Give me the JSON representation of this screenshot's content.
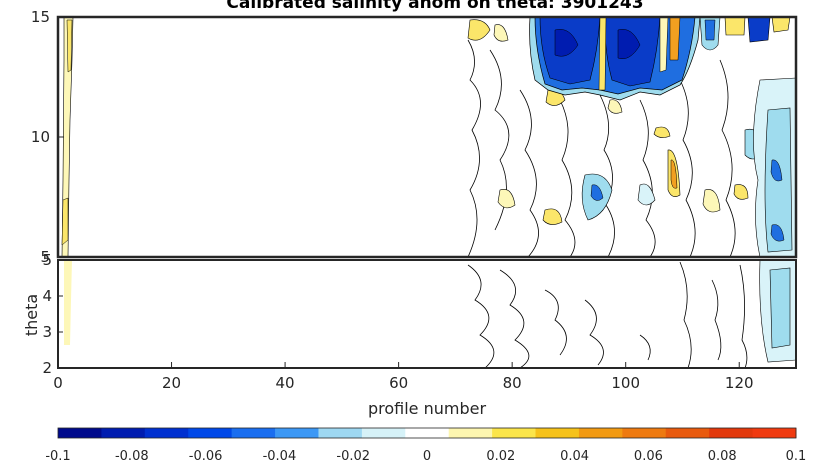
{
  "chart_data": [
    {
      "type": "heatmap",
      "panel": "upper",
      "title": "Calibrated salinity anom on theta: 3901243",
      "xlabel": "",
      "ylabel": "",
      "xlim": [
        0,
        130
      ],
      "ylim": [
        5,
        15
      ],
      "y_ticks": [
        5,
        10,
        15
      ],
      "grid": false
    },
    {
      "type": "heatmap",
      "panel": "lower",
      "xlabel": "profile number",
      "ylabel": "theta",
      "xlim": [
        0,
        130
      ],
      "ylim": [
        2,
        5
      ],
      "x_ticks": [
        0,
        20,
        40,
        60,
        80,
        100,
        120
      ],
      "y_ticks": [
        2,
        3,
        4,
        5
      ],
      "grid": false
    }
  ],
  "colorbar": {
    "range": [
      -0.1,
      0.1
    ],
    "tick_labels": [
      "-0.1",
      "-0.08",
      "-0.06",
      "-0.04",
      "-0.02",
      "0",
      "0.02",
      "0.04",
      "0.06",
      "0.08",
      "0.1"
    ],
    "colors": [
      "#000a8c",
      "#001cb0",
      "#0030d0",
      "#0048e8",
      "#1a6ef0",
      "#3c98f5",
      "#9ed8f2",
      "#d6f2f8",
      "#ffffff",
      "#fdf6b0",
      "#fbe54a",
      "#f6c21a",
      "#f29a12",
      "#ee7a10",
      "#e85a0e",
      "#e2380c",
      "#f03a10"
    ]
  },
  "colors": {
    "deep_blue": "#0a3cc8",
    "mid_blue": "#1f6ee0",
    "light_blue": "#9fdcee",
    "pale_blue": "#d9f3f9",
    "yellow": "#fbe66a",
    "pale_yellow": "#fdf7b8",
    "orange": "#f2a020"
  }
}
